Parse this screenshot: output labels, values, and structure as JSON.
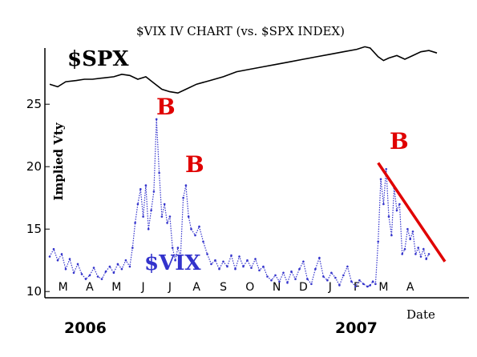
{
  "chart_data": {
    "type": "line",
    "title": "$VIX IV CHART (vs. $SPX INDEX)",
    "ylabel": "Implied Vty",
    "xlabel": "Date",
    "ylim": [
      9.5,
      29.5
    ],
    "yticks": [
      10,
      15,
      20,
      25
    ],
    "grid": false,
    "x_tick_labels": [
      "M",
      "A",
      "M",
      "J",
      "J",
      "A",
      "S",
      "O",
      "N",
      "D",
      "J",
      "F",
      "M",
      "A"
    ],
    "x_tick_positions": [
      0.5,
      1.5,
      2.5,
      3.5,
      4.5,
      5.5,
      6.5,
      7.5,
      8.5,
      9.5,
      10.5,
      11.5,
      12.5,
      13.5
    ],
    "year_labels": [
      "2006",
      "2007"
    ],
    "series": [
      {
        "name": "$SPX",
        "color": "#000000",
        "x": [
          0,
          0.3,
          0.6,
          1.0,
          1.3,
          1.6,
          2.0,
          2.4,
          2.7,
          3.0,
          3.3,
          3.6,
          3.9,
          4.2,
          4.5,
          4.8,
          5.1,
          5.5,
          6.0,
          6.5,
          7.0,
          7.5,
          8.0,
          8.5,
          9.0,
          9.5,
          10.0,
          10.5,
          11.0,
          11.5,
          11.8,
          12.0,
          12.3,
          12.5,
          12.7,
          13.0,
          13.3,
          13.6,
          13.9,
          14.2,
          14.5
        ],
        "values": [
          26.6,
          26.4,
          26.8,
          26.9,
          27.0,
          27.0,
          27.1,
          27.2,
          27.4,
          27.3,
          27.0,
          27.2,
          26.7,
          26.2,
          26.0,
          25.9,
          26.2,
          26.6,
          26.9,
          27.2,
          27.6,
          27.8,
          28.0,
          28.2,
          28.4,
          28.6,
          28.8,
          29.0,
          29.2,
          29.4,
          29.6,
          29.5,
          28.8,
          28.5,
          28.7,
          28.9,
          28.6,
          28.9,
          29.2,
          29.3,
          29.1
        ]
      },
      {
        "name": "$VIX",
        "color": "#3333cc",
        "x": [
          0,
          0.15,
          0.3,
          0.45,
          0.6,
          0.75,
          0.9,
          1.05,
          1.2,
          1.35,
          1.5,
          1.65,
          1.8,
          1.95,
          2.1,
          2.25,
          2.4,
          2.55,
          2.7,
          2.85,
          3.0,
          3.1,
          3.2,
          3.3,
          3.4,
          3.5,
          3.6,
          3.7,
          3.8,
          3.9,
          4.0,
          4.1,
          4.2,
          4.3,
          4.4,
          4.5,
          4.6,
          4.7,
          4.8,
          4.9,
          5.0,
          5.1,
          5.2,
          5.3,
          5.45,
          5.6,
          5.75,
          5.9,
          6.05,
          6.2,
          6.35,
          6.5,
          6.65,
          6.8,
          6.95,
          7.1,
          7.25,
          7.4,
          7.55,
          7.7,
          7.85,
          8.0,
          8.15,
          8.3,
          8.45,
          8.6,
          8.75,
          8.9,
          9.05,
          9.2,
          9.35,
          9.5,
          9.65,
          9.8,
          9.95,
          10.1,
          10.25,
          10.4,
          10.55,
          10.7,
          10.85,
          11.0,
          11.15,
          11.3,
          11.45,
          11.6,
          11.75,
          11.9,
          12.0,
          12.1,
          12.2,
          12.3,
          12.4,
          12.5,
          12.6,
          12.7,
          12.8,
          12.9,
          13.0,
          13.1,
          13.2,
          13.3,
          13.4,
          13.5,
          13.6,
          13.7,
          13.8,
          13.9,
          14.0,
          14.1,
          14.2
        ],
        "values": [
          12.8,
          13.4,
          12.5,
          13.0,
          11.8,
          12.6,
          11.5,
          12.2,
          11.4,
          11.0,
          11.3,
          11.9,
          11.2,
          11.0,
          11.6,
          12.0,
          11.5,
          12.2,
          11.8,
          12.5,
          12.0,
          13.5,
          15.5,
          17.0,
          18.2,
          16.0,
          18.5,
          15.0,
          16.5,
          18.0,
          23.8,
          19.5,
          16.0,
          17.0,
          15.5,
          16.0,
          13.5,
          12.5,
          13.5,
          12.8,
          17.5,
          18.5,
          16.0,
          15.0,
          14.5,
          15.2,
          14.0,
          13.0,
          12.2,
          12.5,
          11.8,
          12.4,
          12.0,
          12.9,
          11.8,
          12.8,
          12.0,
          12.5,
          11.9,
          12.6,
          11.7,
          12.0,
          11.2,
          10.9,
          11.3,
          10.8,
          11.5,
          10.7,
          11.6,
          11.0,
          11.8,
          12.4,
          11.0,
          10.6,
          11.8,
          12.7,
          11.2,
          10.9,
          11.5,
          11.1,
          10.5,
          11.3,
          12.0,
          10.8,
          10.4,
          10.9,
          10.6,
          10.4,
          10.5,
          10.8,
          10.6,
          14.0,
          19.0,
          17.0,
          19.8,
          16.0,
          14.5,
          18.3,
          16.5,
          17.0,
          13.0,
          13.4,
          15.0,
          14.2,
          14.8,
          13.0,
          13.5,
          12.8,
          13.4,
          12.6,
          13.0
        ]
      }
    ],
    "annotations": [
      {
        "text": "$SPX",
        "type": "series-label"
      },
      {
        "text": "$VIX",
        "type": "series-label"
      },
      {
        "text": "B",
        "type": "buy-marker"
      },
      {
        "text": "B",
        "type": "buy-marker"
      },
      {
        "text": "B",
        "type": "buy-marker"
      }
    ],
    "trendline": {
      "color": "#e00000",
      "from": [
        12.3,
        20.3
      ],
      "to": [
        14.8,
        12.4
      ]
    }
  }
}
